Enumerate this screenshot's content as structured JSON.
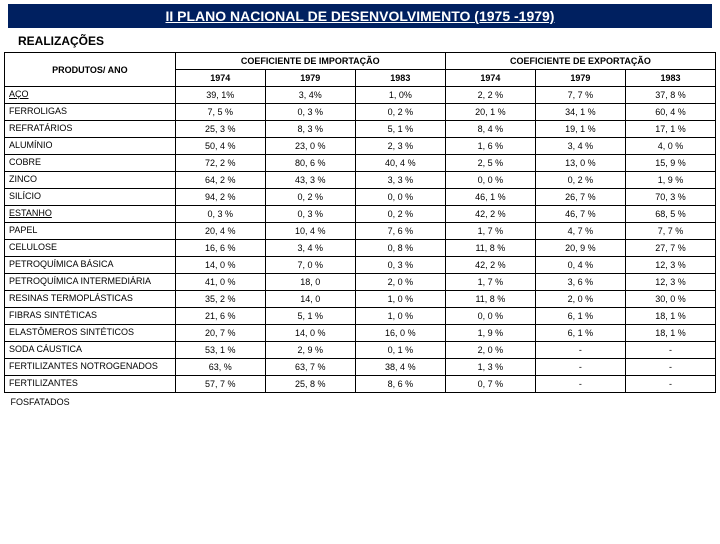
{
  "title": "II PLANO NACIONAL DE DESENVOLVIMENTO (1975 -1979)",
  "subtitle": "REALIZAÇÕES",
  "headers": {
    "prod": "PRODUTOS/ ANO",
    "imp": "COEFICIENTE DE IMPORTAÇÃO",
    "exp": "COEFICIENTE DE EXPORTAÇÃO",
    "years": [
      "1974",
      "1979",
      "1983",
      "1974",
      "1979",
      "1983"
    ]
  },
  "rows": [
    {
      "label": "AÇO",
      "u": true,
      "v": [
        "39, 1%",
        "3, 4%",
        "1, 0%",
        "2, 2 %",
        "7, 7 %",
        "37, 8 %"
      ]
    },
    {
      "label": "FERROLIGAS",
      "v": [
        "7, 5 %",
        "0, 3 %",
        "0, 2 %",
        "20, 1 %",
        "34, 1 %",
        "60, 4 %"
      ]
    },
    {
      "label": "REFRATÁRIOS",
      "v": [
        "25, 3 %",
        "8, 3 %",
        "5, 1 %",
        "8, 4 %",
        "19, 1 %",
        "17, 1 %"
      ]
    },
    {
      "label": "ALUMÍNIO",
      "v": [
        "50, 4 %",
        "23, 0 %",
        "2, 3 %",
        "1, 6 %",
        "3, 4 %",
        "4, 0 %"
      ]
    },
    {
      "label": "COBRE",
      "v": [
        "72, 2 %",
        "80, 6 %",
        "40, 4 %",
        "2, 5 %",
        "13, 0 %",
        "15, 9 %"
      ]
    },
    {
      "label": "ZINCO",
      "v": [
        "64, 2 %",
        "43, 3 %",
        "3, 3 %",
        "0, 0 %",
        "0, 2 %",
        "1, 9 %"
      ]
    },
    {
      "label": "SILÍCIO",
      "v": [
        "94, 2 %",
        "0, 2 %",
        "0, 0 %",
        "46, 1 %",
        "26, 7 %",
        "70, 3 %"
      ]
    },
    {
      "label": "ESTANHO",
      "u": true,
      "v": [
        "0, 3 %",
        "0, 3 %",
        "0, 2 %",
        "42, 2 %",
        "46, 7 %",
        "68, 5 %"
      ]
    },
    {
      "label": "PAPEL",
      "v": [
        "20, 4 %",
        "10, 4 %",
        "7, 6 %",
        "1, 7 %",
        "4, 7 %",
        "7, 7 %"
      ]
    },
    {
      "label": "CELULOSE",
      "v": [
        "16, 6 %",
        "3, 4 %",
        "0, 8 %",
        "11, 8 %",
        "20, 9 %",
        "27, 7 %"
      ]
    },
    {
      "label": "PETROQUÍMICA BÁSICA",
      "v": [
        "14, 0 %",
        "7, 0 %",
        "0, 3 %",
        "42, 2 %",
        "0, 4 %",
        "12, 3 %"
      ]
    },
    {
      "label": "PETROQUÍMICA INTERMEDIÁRIA",
      "v": [
        "41, 0 %",
        "18, 0",
        "2, 0 %",
        "1, 7 %",
        "3, 6 %",
        "12, 3 %"
      ]
    },
    {
      "label": "RESINAS TERMOPLÁSTICAS",
      "v": [
        "35, 2 %",
        "14, 0",
        "1, 0 %",
        "11, 8 %",
        "2, 0 %",
        "30, 0 %"
      ]
    },
    {
      "label": "FIBRAS SINTÉTICAS",
      "v": [
        "21, 6 %",
        "5, 1 %",
        "1, 0 %",
        "0, 0 %",
        "6, 1 %",
        "18, 1 %"
      ]
    },
    {
      "label": "ELASTÔMEROS SINTÉTICOS",
      "v": [
        "20, 7 %",
        "14, 0 %",
        "16, 0 %",
        "1, 9 %",
        "6, 1 %",
        "18, 1 %"
      ]
    },
    {
      "label": "SODA CÁUSTICA",
      "v": [
        "53, 1 %",
        "2, 9 %",
        "0, 1 %",
        "2, 0 %",
        "-",
        "-"
      ]
    },
    {
      "label": "FERTILIZANTES NOTROGENADOS",
      "v": [
        "63, %",
        "63, 7 %",
        "38, 4 %",
        "1, 3 %",
        "-",
        "-"
      ]
    },
    {
      "label": "FERTILIZANTES",
      "v": [
        "57, 7 %",
        "25, 8 %",
        "8, 6 %",
        "0, 7 %",
        "-",
        "-"
      ]
    }
  ],
  "footer": "FOSFATADOS",
  "colors": {
    "titleBg": "#002060",
    "titleFg": "#ffffff",
    "border": "#000000"
  }
}
